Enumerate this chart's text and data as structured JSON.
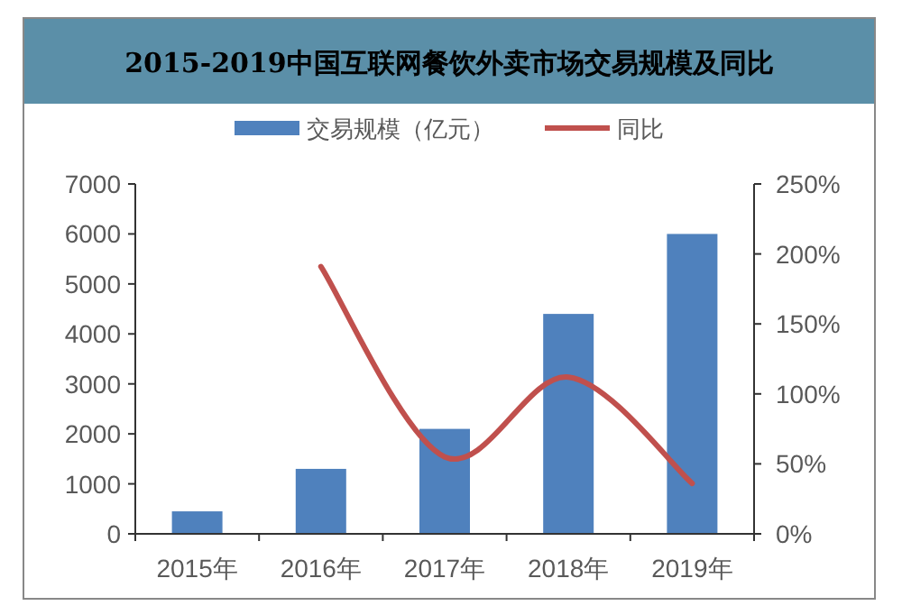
{
  "chart_data": {
    "type": "bar",
    "title": "2015-2019中国互联网餐饮外卖市场交易规模及同比",
    "categories": [
      "2015年",
      "2016年",
      "2017年",
      "2018年",
      "2019年"
    ],
    "series": [
      {
        "name": "交易规模（亿元）",
        "color": "#4f81bd",
        "values": [
          450,
          1300,
          2100,
          4400,
          6000
        ]
      },
      {
        "name": "同比",
        "type": "line",
        "axis": "y2",
        "color": "#c0504d",
        "values": [
          null,
          191,
          55,
          112,
          36
        ]
      }
    ],
    "ylim": [
      0,
      7000
    ],
    "yticks": [
      0,
      1000,
      2000,
      3000,
      4000,
      5000,
      6000,
      7000
    ],
    "y2lim": [
      0,
      250
    ],
    "y2ticks": [
      {
        "value": 0,
        "label": "0%"
      },
      {
        "value": 50,
        "label": "50%"
      },
      {
        "value": 100,
        "label": "100%"
      },
      {
        "value": 150,
        "label": "150%"
      },
      {
        "value": 200,
        "label": "200%"
      },
      {
        "value": 250,
        "label": "250%"
      }
    ],
    "legend": "top",
    "grid": false
  }
}
